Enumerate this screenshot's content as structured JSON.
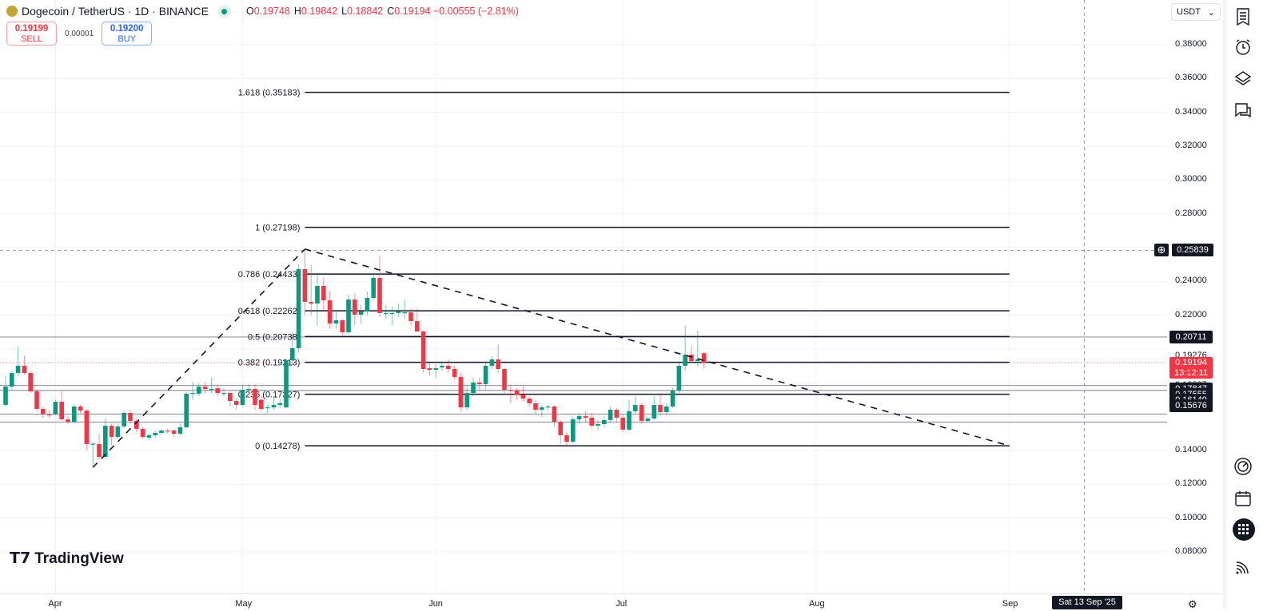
{
  "header": {
    "symbol": "Dogecoin / TetherUS · 1D · BINANCE",
    "o_label": "O",
    "o": "0.19748",
    "h_label": "H",
    "h": "0.19842",
    "l_label": "L",
    "l": "0.18842",
    "c_label": "C",
    "c": "0.19194",
    "change": "−0.00555 (−2.81%)"
  },
  "trade": {
    "sell_price": "0.19199",
    "sell_label": "SELL",
    "spread": "0.00001",
    "buy_price": "0.19200",
    "buy_label": "BUY"
  },
  "currency": "USDT",
  "logo": "TradingView",
  "crosshair": {
    "price_label": "0.25839",
    "date_label": "Sat 13 Sep '25",
    "price": 0.25839,
    "index": 173
  },
  "last_price": {
    "price": "0.19194",
    "countdown": "13:12:11"
  },
  "price_tags": [
    {
      "label": "0.20711",
      "price": 0.20711,
      "kind": "box"
    },
    {
      "label": "0.19276",
      "price": 0.19276,
      "kind": "text",
      "shown_at": 0.1956
    },
    {
      "label": "0.18337",
      "price": 0.18337,
      "kind": "text",
      "shown_at": 0.1784
    },
    {
      "label": "0.17847",
      "price": 0.17847,
      "kind": "box",
      "shown_at": 0.1763
    },
    {
      "label": "0.17555",
      "price": 0.17555,
      "kind": "box",
      "shown_at": 0.173
    },
    {
      "label": "0.16149",
      "price": 0.16149,
      "kind": "box",
      "shown_at": 0.1697
    },
    {
      "label": "0.15676",
      "price": 0.15676,
      "kind": "box",
      "shown_at": 0.1664
    }
  ],
  "colors": {
    "up": "#089981",
    "down": "#f23645",
    "tag": "#131722"
  },
  "chart_data": {
    "type": "candlestick",
    "ylim": [
      0.07,
      0.395
    ],
    "y_ticks": [
      "0.38000",
      "0.36000",
      "0.34000",
      "0.32000",
      "0.30000",
      "0.28000",
      "0.24000",
      "0.22000",
      "0.14000",
      "0.12000",
      "0.10000",
      "0.08000"
    ],
    "x_ticks": [
      {
        "label": "Apr",
        "index": 8
      },
      {
        "label": "May",
        "index": 38
      },
      {
        "label": "Jun",
        "index": 69
      },
      {
        "label": "Jul",
        "index": 99
      },
      {
        "label": "Aug",
        "index": 130
      },
      {
        "label": "Sep",
        "index": 161
      }
    ],
    "candles_ohlc": [
      [
        0.167,
        0.1843,
        0.166,
        0.1778
      ],
      [
        0.1778,
        0.1873,
        0.176,
        0.1858
      ],
      [
        0.1858,
        0.2014,
        0.184,
        0.1901
      ],
      [
        0.1901,
        0.1962,
        0.185,
        0.1858
      ],
      [
        0.1858,
        0.187,
        0.174,
        0.175
      ],
      [
        0.175,
        0.176,
        0.163,
        0.1646
      ],
      [
        0.1646,
        0.166,
        0.159,
        0.1613
      ],
      [
        0.1613,
        0.164,
        0.159,
        0.1608
      ],
      [
        0.1613,
        0.17,
        0.161,
        0.1688
      ],
      [
        0.1688,
        0.175,
        0.1575,
        0.1584
      ],
      [
        0.1584,
        0.16,
        0.156,
        0.157
      ],
      [
        0.157,
        0.1672,
        0.156,
        0.166
      ],
      [
        0.166,
        0.167,
        0.162,
        0.1636
      ],
      [
        0.1636,
        0.1645,
        0.14,
        0.1438
      ],
      [
        0.1438,
        0.145,
        0.13,
        0.144
      ],
      [
        0.1438,
        0.15,
        0.135,
        0.1362
      ],
      [
        0.1362,
        0.1589,
        0.135,
        0.1546
      ],
      [
        0.1546,
        0.156,
        0.143,
        0.148
      ],
      [
        0.148,
        0.156,
        0.147,
        0.1542
      ],
      [
        0.1542,
        0.1635,
        0.153,
        0.1622
      ],
      [
        0.1622,
        0.164,
        0.156,
        0.1575
      ],
      [
        0.1575,
        0.159,
        0.151,
        0.1528
      ],
      [
        0.1528,
        0.154,
        0.147,
        0.148
      ],
      [
        0.1476,
        0.15,
        0.146,
        0.149
      ],
      [
        0.149,
        0.1515,
        0.148,
        0.1504
      ],
      [
        0.1504,
        0.1525,
        0.1495,
        0.1518
      ],
      [
        0.1518,
        0.153,
        0.15,
        0.1515
      ],
      [
        0.1518,
        0.1525,
        0.148,
        0.1499
      ],
      [
        0.1499,
        0.156,
        0.149,
        0.1537
      ],
      [
        0.1537,
        0.1746,
        0.153,
        0.1736
      ],
      [
        0.1736,
        0.1806,
        0.17,
        0.174
      ],
      [
        0.1736,
        0.18,
        0.172,
        0.1778
      ],
      [
        0.1778,
        0.18,
        0.174,
        0.1764
      ],
      [
        0.1764,
        0.183,
        0.174,
        0.1764
      ],
      [
        0.1768,
        0.179,
        0.172,
        0.174
      ],
      [
        0.174,
        0.177,
        0.172,
        0.174
      ],
      [
        0.174,
        0.175,
        0.166,
        0.1693
      ],
      [
        0.1693,
        0.171,
        0.164,
        0.1669
      ],
      [
        0.1669,
        0.179,
        0.166,
        0.1759
      ],
      [
        0.1759,
        0.179,
        0.174,
        0.1764
      ],
      [
        0.1764,
        0.179,
        0.164,
        0.1669
      ],
      [
        0.17,
        0.172,
        0.163,
        0.1646
      ],
      [
        0.1655,
        0.167,
        0.162,
        0.1655
      ],
      [
        0.1655,
        0.172,
        0.164,
        0.1669
      ],
      [
        0.1669,
        0.17,
        0.165,
        0.168
      ],
      [
        0.1655,
        0.194,
        0.165,
        0.1934
      ],
      [
        0.1934,
        0.21,
        0.19,
        0.2005
      ],
      [
        0.2005,
        0.25,
        0.198,
        0.2473
      ],
      [
        0.2473,
        0.2584,
        0.22,
        0.2279
      ],
      [
        0.2279,
        0.25,
        0.22,
        0.2269
      ],
      [
        0.2269,
        0.244,
        0.214,
        0.2373
      ],
      [
        0.2373,
        0.242,
        0.223,
        0.2288
      ],
      [
        0.2288,
        0.234,
        0.212,
        0.2151
      ],
      [
        0.2151,
        0.223,
        0.212,
        0.217
      ],
      [
        0.217,
        0.218,
        0.207,
        0.2099
      ],
      [
        0.2099,
        0.232,
        0.209,
        0.2293
      ],
      [
        0.2293,
        0.233,
        0.214,
        0.2203
      ],
      [
        0.2203,
        0.226,
        0.215,
        0.2222
      ],
      [
        0.2222,
        0.234,
        0.22,
        0.2302
      ],
      [
        0.2302,
        0.244,
        0.229,
        0.2421
      ],
      [
        0.2421,
        0.255,
        0.219,
        0.2213
      ],
      [
        0.2213,
        0.226,
        0.218,
        0.2213
      ],
      [
        0.2213,
        0.225,
        0.214,
        0.2213
      ],
      [
        0.2213,
        0.227,
        0.219,
        0.2222
      ],
      [
        0.2217,
        0.229,
        0.218,
        0.2217
      ],
      [
        0.2217,
        0.224,
        0.214,
        0.2165
      ],
      [
        0.2165,
        0.224,
        0.21,
        0.2104
      ],
      [
        0.2104,
        0.211,
        0.186,
        0.1882
      ],
      [
        0.1887,
        0.192,
        0.184,
        0.1877
      ],
      [
        0.1877,
        0.191,
        0.183,
        0.1887
      ],
      [
        0.1891,
        0.192,
        0.187,
        0.1901
      ],
      [
        0.1901,
        0.194,
        0.186,
        0.1882
      ],
      [
        0.1882,
        0.19,
        0.182,
        0.1835
      ],
      [
        0.1835,
        0.186,
        0.163,
        0.1655
      ],
      [
        0.1655,
        0.178,
        0.164,
        0.174
      ],
      [
        0.174,
        0.183,
        0.172,
        0.1802
      ],
      [
        0.1802,
        0.183,
        0.176,
        0.1792
      ],
      [
        0.1792,
        0.192,
        0.176,
        0.1901
      ],
      [
        0.1901,
        0.196,
        0.188,
        0.1939
      ],
      [
        0.1939,
        0.2028,
        0.186,
        0.1882
      ],
      [
        0.1882,
        0.189,
        0.173,
        0.1759
      ],
      [
        0.1759,
        0.179,
        0.168,
        0.1754
      ],
      [
        0.1754,
        0.177,
        0.17,
        0.1731
      ],
      [
        0.1731,
        0.178,
        0.169,
        0.1707
      ],
      [
        0.1707,
        0.172,
        0.166,
        0.1679
      ],
      [
        0.1679,
        0.17,
        0.162,
        0.1641
      ],
      [
        0.1641,
        0.167,
        0.16,
        0.1655
      ],
      [
        0.166,
        0.167,
        0.164,
        0.166
      ],
      [
        0.166,
        0.167,
        0.154,
        0.157
      ],
      [
        0.157,
        0.158,
        0.144,
        0.149
      ],
      [
        0.149,
        0.151,
        0.142,
        0.1452
      ],
      [
        0.1452,
        0.16,
        0.144,
        0.1584
      ],
      [
        0.1584,
        0.162,
        0.156,
        0.1603
      ],
      [
        0.1603,
        0.163,
        0.157,
        0.1594
      ],
      [
        0.1594,
        0.162,
        0.153,
        0.1547
      ],
      [
        0.1547,
        0.158,
        0.152,
        0.1556
      ],
      [
        0.1556,
        0.16,
        0.154,
        0.158
      ],
      [
        0.158,
        0.166,
        0.157,
        0.1641
      ],
      [
        0.1641,
        0.165,
        0.157,
        0.1594
      ],
      [
        0.1594,
        0.161,
        0.151,
        0.1523
      ],
      [
        0.1523,
        0.17,
        0.1515,
        0.1632
      ],
      [
        0.1632,
        0.172,
        0.162,
        0.1669
      ],
      [
        0.1669,
        0.168,
        0.156,
        0.1575
      ],
      [
        0.1575,
        0.16,
        0.157,
        0.1589
      ],
      [
        0.1589,
        0.172,
        0.158,
        0.1669
      ],
      [
        0.1669,
        0.174,
        0.161,
        0.1627
      ],
      [
        0.1627,
        0.168,
        0.161,
        0.166
      ],
      [
        0.166,
        0.177,
        0.165,
        0.1754
      ],
      [
        0.1754,
        0.192,
        0.174,
        0.1901
      ],
      [
        0.1901,
        0.214,
        0.187,
        0.1967
      ],
      [
        0.1967,
        0.202,
        0.192,
        0.1929
      ],
      [
        0.1929,
        0.211,
        0.19,
        0.1939
      ],
      [
        0.19748,
        0.19842,
        0.18842,
        0.19194
      ]
    ],
    "fib_levels": [
      {
        "label": "1.618 (0.35183)",
        "price": 0.35183
      },
      {
        "label": "1 (0.27198)",
        "price": 0.27198
      },
      {
        "label": "0.786 (0.24433)",
        "price": 0.24433
      },
      {
        "label": "0.618 (0.22262)",
        "price": 0.22262
      },
      {
        "label": "0.5 (0.20738)",
        "price": 0.20738
      },
      {
        "label": "0.382 (0.19213)",
        "price": 0.19213
      },
      {
        "label": "0.236 (0.17327)",
        "price": 0.17327
      },
      {
        "label": "0 (0.14278)",
        "price": 0.14278
      }
    ],
    "fib_range_index": [
      48,
      161
    ],
    "trend_lines": [
      [
        [
          14,
          0.13
        ],
        [
          48,
          0.2591
        ]
      ],
      [
        [
          48,
          0.2591
        ],
        [
          161,
          0.14278
        ]
      ]
    ],
    "horizontal_lines": [
      0.20711,
      0.17847,
      0.17555,
      0.16149,
      0.15676
    ]
  }
}
